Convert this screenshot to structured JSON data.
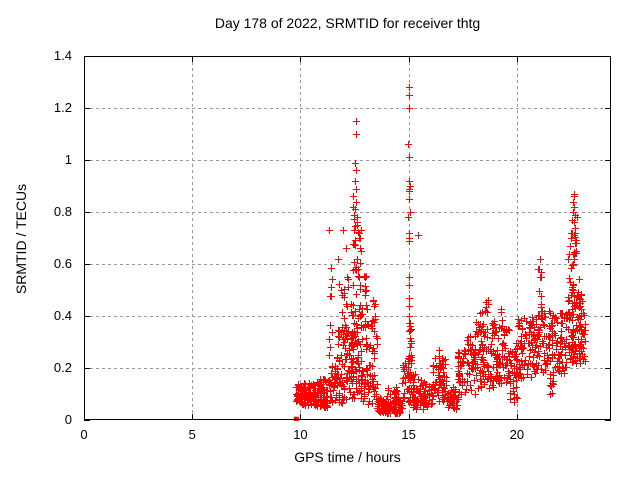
{
  "title": "Day 178 of 2022, SRMTID for receiver thtg",
  "chart_data": {
    "type": "scatter",
    "title": "Day 178 of 2022, SRMTID for receiver thtg",
    "xlabel": "GPS time / hours",
    "ylabel": "SRMTID / TECUs",
    "xlim": [
      0,
      24.35
    ],
    "ylim": [
      0,
      1.4
    ],
    "x_ticks": [
      [
        0,
        "0"
      ],
      [
        5,
        "5"
      ],
      [
        10,
        "10"
      ],
      [
        15,
        "15"
      ],
      [
        20,
        "20"
      ]
    ],
    "y_ticks": [
      [
        0,
        "0"
      ],
      [
        0.2,
        "0.2"
      ],
      [
        0.4,
        "0.4"
      ],
      [
        0.6,
        "0.6"
      ],
      [
        0.8,
        "0.8"
      ],
      [
        1,
        "1"
      ],
      [
        1.2,
        "1.2"
      ],
      [
        1.4,
        "1.4"
      ]
    ],
    "grid": true,
    "legend": "none",
    "marker": "plus",
    "marker_color": "#ff0000",
    "grid_color": "#999999",
    "border_color": "#000000",
    "data_start_hour": 9.79,
    "data_end_hour": 23.15,
    "square_points": [
      [
        9.79,
        0.005
      ]
    ],
    "points": [
      [
        12.55,
        1.15
      ],
      [
        12.58,
        1.1
      ],
      [
        12.53,
        0.99
      ],
      [
        12.56,
        0.96
      ],
      [
        12.54,
        0.92
      ],
      [
        12.57,
        0.89
      ],
      [
        12.55,
        0.84
      ],
      [
        12.52,
        0.81
      ],
      [
        12.6,
        0.78
      ],
      [
        12.63,
        0.75
      ],
      [
        12.49,
        0.73
      ],
      [
        12.45,
        0.86
      ],
      [
        12.42,
        0.82
      ],
      [
        11.95,
        0.73
      ],
      [
        11.32,
        0.73
      ],
      [
        12.12,
        0.66
      ],
      [
        12.7,
        0.72
      ],
      [
        12.75,
        0.7
      ],
      [
        15.0,
        1.28
      ],
      [
        15.01,
        1.25
      ],
      [
        15.02,
        1.2
      ],
      [
        14.99,
        1.06
      ],
      [
        15.0,
        1.01
      ],
      [
        15.02,
        0.92
      ],
      [
        15.04,
        0.9
      ],
      [
        15.0,
        0.89
      ],
      [
        15.03,
        0.88
      ],
      [
        15.01,
        0.85
      ],
      [
        15.05,
        0.8
      ],
      [
        14.98,
        0.78
      ],
      [
        15.0,
        0.72
      ],
      [
        15.03,
        0.7
      ],
      [
        15.44,
        0.71
      ],
      [
        15.02,
        0.69
      ],
      [
        15.0,
        0.55
      ],
      [
        15.01,
        0.52
      ],
      [
        15.03,
        0.47
      ],
      [
        15.0,
        0.44
      ],
      [
        15.02,
        0.4
      ],
      [
        15.05,
        0.36
      ],
      [
        22.62,
        0.87
      ],
      [
        22.66,
        0.86
      ],
      [
        22.6,
        0.84
      ],
      [
        22.64,
        0.82
      ],
      [
        22.58,
        0.8
      ],
      [
        22.68,
        0.79
      ],
      [
        22.55,
        0.77
      ],
      [
        22.63,
        0.76
      ],
      [
        22.7,
        0.74
      ],
      [
        22.52,
        0.72
      ],
      [
        22.48,
        0.7
      ],
      [
        22.45,
        0.67
      ],
      [
        22.4,
        0.64
      ],
      [
        22.72,
        0.68
      ],
      [
        22.75,
        0.65
      ],
      [
        22.35,
        0.62
      ],
      [
        21.05,
        0.62
      ],
      [
        21.0,
        0.58
      ],
      [
        21.08,
        0.55
      ],
      [
        19.85,
        0.07
      ],
      [
        19.88,
        0.1
      ],
      [
        16.42,
        0.27
      ],
      [
        13.0,
        0.55
      ],
      [
        11.75,
        0.62
      ]
    ],
    "clusters": [
      {
        "x": [
          9.78,
          10.05
        ],
        "y": [
          0.07,
          0.14
        ],
        "n": 25
      },
      {
        "x": [
          10.0,
          10.7
        ],
        "y": [
          0.055,
          0.145
        ],
        "n": 70
      },
      {
        "x": [
          10.7,
          11.25
        ],
        "y": [
          0.05,
          0.16
        ],
        "n": 60
      },
      {
        "x": [
          11.25,
          11.65
        ],
        "y": [
          0.06,
          0.22
        ],
        "n": 35
      },
      {
        "x": [
          11.3,
          11.5
        ],
        "y": [
          0.25,
          0.62
        ],
        "n": 10
      },
      {
        "x": [
          11.65,
          12.25
        ],
        "y": [
          0.06,
          0.35
        ],
        "n": 70
      },
      {
        "x": [
          11.7,
          12.2
        ],
        "y": [
          0.35,
          0.58
        ],
        "n": 16
      },
      {
        "x": [
          12.3,
          12.85
        ],
        "y": [
          0.08,
          0.45
        ],
        "n": 90
      },
      {
        "x": [
          12.4,
          12.8
        ],
        "y": [
          0.45,
          0.8
        ],
        "n": 28
      },
      {
        "x": [
          12.85,
          13.55
        ],
        "y": [
          0.05,
          0.4
        ],
        "n": 70
      },
      {
        "x": [
          12.95,
          13.1
        ],
        "y": [
          0.4,
          0.57
        ],
        "n": 8
      },
      {
        "x": [
          13.25,
          13.45
        ],
        "y": [
          0.35,
          0.52
        ],
        "n": 6
      },
      {
        "x": [
          13.55,
          14.7
        ],
        "y": [
          0.025,
          0.09
        ],
        "n": 110
      },
      {
        "x": [
          14.0,
          14.6
        ],
        "y": [
          0.09,
          0.13
        ],
        "n": 12
      },
      {
        "x": [
          14.7,
          14.97
        ],
        "y": [
          0.07,
          0.22
        ],
        "n": 18
      },
      {
        "x": [
          14.95,
          15.12
        ],
        "y": [
          0.05,
          0.38
        ],
        "n": 40
      },
      {
        "x": [
          15.12,
          15.65
        ],
        "y": [
          0.04,
          0.18
        ],
        "n": 45
      },
      {
        "x": [
          15.65,
          16.1
        ],
        "y": [
          0.05,
          0.15
        ],
        "n": 35
      },
      {
        "x": [
          16.1,
          16.75
        ],
        "y": [
          0.07,
          0.25
        ],
        "n": 55
      },
      {
        "x": [
          16.75,
          17.25
        ],
        "y": [
          0.04,
          0.13
        ],
        "n": 35
      },
      {
        "x": [
          17.25,
          17.7
        ],
        "y": [
          0.07,
          0.27
        ],
        "n": 42
      },
      {
        "x": [
          17.7,
          18.1
        ],
        "y": [
          0.1,
          0.33
        ],
        "n": 42
      },
      {
        "x": [
          18.1,
          19.05
        ],
        "y": [
          0.12,
          0.38
        ],
        "n": 90
      },
      {
        "x": [
          18.5,
          18.65
        ],
        "y": [
          0.38,
          0.48
        ],
        "n": 6
      },
      {
        "x": [
          18.25,
          18.38
        ],
        "y": [
          0.34,
          0.45
        ],
        "n": 5
      },
      {
        "x": [
          19.05,
          19.65
        ],
        "y": [
          0.14,
          0.36
        ],
        "n": 60
      },
      {
        "x": [
          19.25,
          19.35
        ],
        "y": [
          0.36,
          0.44
        ],
        "n": 4
      },
      {
        "x": [
          19.65,
          20.05
        ],
        "y": [
          0.07,
          0.3
        ],
        "n": 40
      },
      {
        "x": [
          20.05,
          21.0
        ],
        "y": [
          0.16,
          0.4
        ],
        "n": 90
      },
      {
        "x": [
          20.95,
          21.15
        ],
        "y": [
          0.4,
          0.62
        ],
        "n": 9
      },
      {
        "x": [
          21.0,
          22.3
        ],
        "y": [
          0.18,
          0.42
        ],
        "n": 110
      },
      {
        "x": [
          21.5,
          21.7
        ],
        "y": [
          0.1,
          0.18
        ],
        "n": 10
      },
      {
        "x": [
          22.3,
          23.0
        ],
        "y": [
          0.22,
          0.5
        ],
        "n": 90
      },
      {
        "x": [
          22.35,
          22.85
        ],
        "y": [
          0.5,
          0.6
        ],
        "n": 12
      },
      {
        "x": [
          22.55,
          22.8
        ],
        "y": [
          0.6,
          0.78
        ],
        "n": 14
      },
      {
        "x": [
          22.85,
          23.15
        ],
        "y": [
          0.22,
          0.45
        ],
        "n": 25
      }
    ]
  }
}
